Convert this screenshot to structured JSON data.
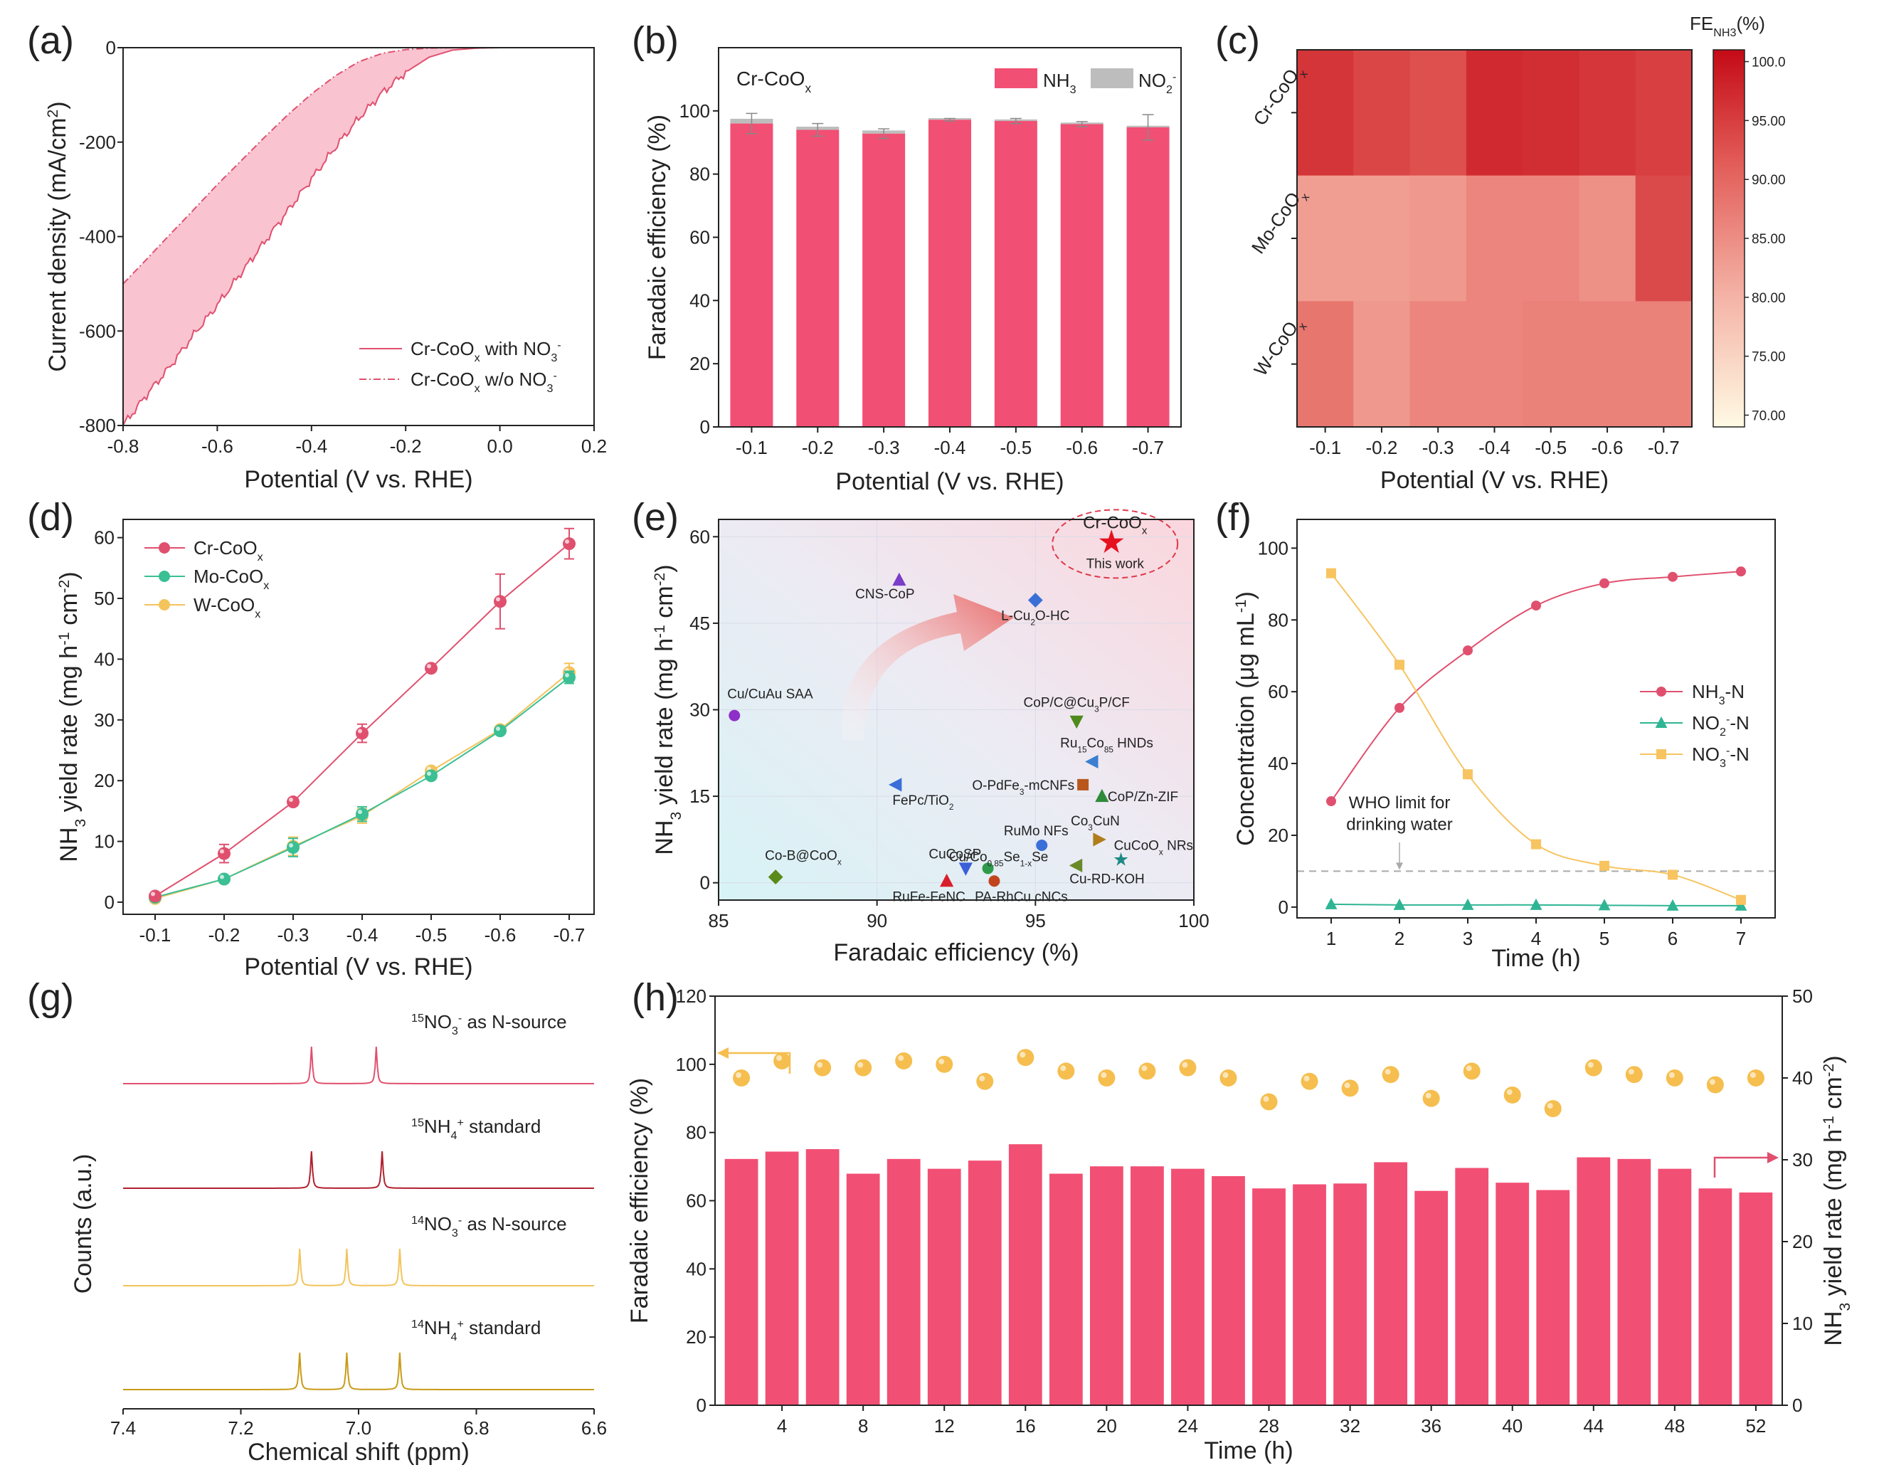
{
  "colors": {
    "cr": "#e0506e",
    "bar": "#f24f74",
    "mo": "#3bbf94",
    "w": "#f3c35c",
    "no2": "#2fb594",
    "no3": "#f7c460",
    "fill_a": "#f9c3d0",
    "no2bar": "#bdbdbd",
    "ball": "#f5be4e",
    "axis": "#222222"
  },
  "chart_data": [
    {
      "panel": "(a)",
      "type": "line",
      "xlabel": "Potential (V vs. RHE)",
      "ylabel": "Current density (mA/cm²)",
      "xlim": [
        -0.8,
        0.2
      ],
      "ylim": [
        -800,
        0
      ],
      "xticks": [
        "-0.8",
        "-0.6",
        "-0.4",
        "-0.2",
        "0.0",
        "0.2"
      ],
      "yticks": [
        "-800",
        "-600",
        "-400",
        "-200",
        "0"
      ],
      "series": [
        {
          "name": "Cr-CoOx with NO3-",
          "x": [
            -0.8,
            -0.75,
            -0.7,
            -0.65,
            -0.6,
            -0.55,
            -0.5,
            -0.45,
            -0.4,
            -0.35,
            -0.3,
            -0.25,
            -0.2,
            -0.15,
            -0.1,
            -0.05,
            0.0,
            0.05,
            0.1,
            0.15,
            0.2
          ],
          "y": [
            -800,
            -735,
            -675,
            -608,
            -545,
            -478,
            -412,
            -345,
            -278,
            -212,
            -150,
            -96,
            -52,
            -20,
            -5,
            -1,
            0,
            0,
            0,
            0,
            0
          ]
        },
        {
          "name": "Cr-CoOx w/o NO3-",
          "x": [
            -0.8,
            -0.75,
            -0.7,
            -0.65,
            -0.6,
            -0.55,
            -0.5,
            -0.45,
            -0.4,
            -0.35,
            -0.3,
            -0.25,
            -0.2,
            -0.15,
            -0.1,
            -0.05,
            0.0,
            0.05,
            0.1,
            0.15,
            0.2
          ],
          "y": [
            -500,
            -448,
            -395,
            -343,
            -290,
            -240,
            -190,
            -142,
            -98,
            -60,
            -30,
            -12,
            -4,
            -1,
            0,
            0,
            0,
            0,
            0,
            0,
            0
          ]
        }
      ]
    },
    {
      "panel": "(b)",
      "type": "bar",
      "label": "Cr-CoOx",
      "xlabel": "Potential (V vs. RHE)",
      "ylabel": "Faradaic efficiency (%)",
      "categories": [
        "-0.1",
        "-0.2",
        "-0.3",
        "-0.4",
        "-0.5",
        "-0.6",
        "-0.7"
      ],
      "ylim": [
        0,
        120
      ],
      "yticks": [
        "0",
        "20",
        "40",
        "60",
        "80",
        "100"
      ],
      "series": [
        {
          "name": "NH3",
          "values": [
            96.0,
            94.0,
            92.8,
            97.2,
            96.8,
            95.8,
            94.8
          ],
          "errors": [
            3.2,
            2.0,
            1.5,
            0.4,
            0.8,
            0.8,
            4.0
          ]
        },
        {
          "name": "NO2-",
          "values": [
            1.5,
            1.0,
            1.0,
            0.5,
            0.5,
            0.5,
            0.5
          ]
        }
      ]
    },
    {
      "panel": "(c)",
      "type": "heatmap",
      "xlabel": "Potential (V vs. RHE)",
      "x": [
        "-0.1",
        "-0.2",
        "-0.3",
        "-0.4",
        "-0.5",
        "-0.6",
        "-0.7"
      ],
      "y": [
        "Cr-CoOx",
        "Mo-CoOx",
        "W-CoOx"
      ],
      "values": [
        [
          96.0,
          94.0,
          92.8,
          97.2,
          96.8,
          95.8,
          94.8
        ],
        [
          83.0,
          83.0,
          83.5,
          86.0,
          86.0,
          84.5,
          93.5
        ],
        [
          88.0,
          83.5,
          86.0,
          86.0,
          86.5,
          86.5,
          86.5
        ]
      ],
      "colorbar": {
        "title": "FE",
        "sub": "NH3",
        "unit": "(%)",
        "min": 69,
        "max": 101,
        "ticks": [
          "100.0",
          "95.00",
          "90.00",
          "85.00",
          "80.00",
          "75.00",
          "70.00"
        ]
      }
    },
    {
      "panel": "(d)",
      "type": "line",
      "xlabel": "Potential (V vs. RHE)",
      "ylabel": "NH3 yield rate (mg h-1 cm-2)",
      "categories": [
        "-0.1",
        "-0.2",
        "-0.3",
        "-0.4",
        "-0.5",
        "-0.6",
        "-0.7"
      ],
      "ylim": [
        -2,
        63
      ],
      "yticks": [
        "0",
        "10",
        "20",
        "30",
        "40",
        "50",
        "60"
      ],
      "series": [
        {
          "name": "Cr-CoOx",
          "values": [
            1.0,
            8.0,
            16.5,
            27.8,
            38.5,
            49.5,
            59.0
          ],
          "errors": [
            0.3,
            1.5,
            0.4,
            1.5,
            0.4,
            4.5,
            2.5
          ]
        },
        {
          "name": "Mo-CoOx",
          "values": [
            0.8,
            3.8,
            9.0,
            14.5,
            20.8,
            28.2,
            37.0
          ],
          "errors": [
            0.3,
            0.4,
            1.5,
            1.2,
            0.5,
            0.4,
            1.0
          ]
        },
        {
          "name": "W-CoOx",
          "values": [
            0.6,
            3.8,
            9.2,
            14.2,
            21.6,
            28.4,
            37.8
          ],
          "errors": [
            0.3,
            0.4,
            1.5,
            1.2,
            0.5,
            0.4,
            1.5
          ]
        }
      ]
    },
    {
      "panel": "(e)",
      "type": "scatter",
      "xlabel": "Faradaic efficiency (%)",
      "ylabel": "NH3 yield rate (mg h-1 cm-2)",
      "xlim": [
        85,
        100
      ],
      "ylim": [
        -3,
        63
      ],
      "xticks": [
        "85",
        "90",
        "95",
        "100"
      ],
      "yticks": [
        "0",
        "15",
        "30",
        "45",
        "60"
      ],
      "highlight": {
        "name": "Cr-CoOx",
        "note": "This work",
        "x": 97.4,
        "y": 59.0
      },
      "points": [
        {
          "label": "CNS-CoP",
          "x": 90.7,
          "y": 52.5,
          "marker": "tri-up",
          "color": "#7a3cc9"
        },
        {
          "label": "L-Cu2O-HC",
          "x": 95.0,
          "y": 49.0,
          "marker": "diamond",
          "color": "#3a6fd8"
        },
        {
          "label": "Cu/CuAu SAA",
          "x": 85.5,
          "y": 29.0,
          "marker": "circle",
          "color": "#8e2fc8"
        },
        {
          "label": "CoP/C@Cu3P/CF",
          "x": 96.3,
          "y": 28.0,
          "marker": "tri-down",
          "color": "#4f8a1d"
        },
        {
          "label": "Ru15Co85 HNDs",
          "x": 96.8,
          "y": 21.0,
          "marker": "tri-left",
          "color": "#3a7fd0"
        },
        {
          "label": "FePc/TiO2",
          "x": 90.6,
          "y": 17.0,
          "marker": "tri-left",
          "color": "#3a6fd8"
        },
        {
          "label": "O-PdFe3-mCNFs",
          "x": 96.5,
          "y": 17.0,
          "marker": "square",
          "color": "#b8561c"
        },
        {
          "label": "CoP/Zn-ZIF",
          "x": 97.1,
          "y": 15.0,
          "marker": "tri-up",
          "color": "#2f8a3a"
        },
        {
          "label": "Co3CuN",
          "x": 97.0,
          "y": 7.5,
          "marker": "tri-right",
          "color": "#b07d1a"
        },
        {
          "label": "RuMo NFs",
          "x": 95.2,
          "y": 6.5,
          "marker": "circle",
          "color": "#3a6fd8"
        },
        {
          "label": "CuCoOx NRs",
          "x": 97.7,
          "y": 4.0,
          "marker": "star",
          "color": "#1f8a84"
        },
        {
          "label": "CuCoSP",
          "x": 92.8,
          "y": 2.5,
          "marker": "tri-down",
          "color": "#3a5fd8"
        },
        {
          "label": "Cu/Co0.85Se1-xSe",
          "x": 93.5,
          "y": 2.5,
          "marker": "circle",
          "color": "#2f9a4a"
        },
        {
          "label": "Cu-RD-KOH",
          "x": 96.3,
          "y": 3.0,
          "marker": "tri-left",
          "color": "#6a8a2a"
        },
        {
          "label": "Co-B@CoOx",
          "x": 86.8,
          "y": 1.0,
          "marker": "diamond",
          "color": "#5a8a1a"
        },
        {
          "label": "RuFe-FeNC",
          "x": 92.2,
          "y": 0.3,
          "marker": "tri-up",
          "color": "#d81e2a"
        },
        {
          "label": "PA-RhCu cNCs",
          "x": 93.7,
          "y": 0.3,
          "marker": "circle",
          "color": "#c0451f"
        }
      ]
    },
    {
      "panel": "(f)",
      "type": "line",
      "xlabel": "Time (h)",
      "ylabel": "Concentration (μg mL-1)",
      "x": [
        1,
        2,
        3,
        4,
        5,
        6,
        7
      ],
      "xlim": [
        0.5,
        7.5
      ],
      "ylim": [
        -3,
        108
      ],
      "yticks": [
        "0",
        "20",
        "40",
        "60",
        "80",
        "100"
      ],
      "series": [
        {
          "name": "NH3-N",
          "values": [
            29.5,
            55.5,
            71.5,
            84.0,
            90.2,
            92.0,
            93.5
          ]
        },
        {
          "name": "NO2--N",
          "values": [
            0.8,
            0.6,
            0.6,
            0.6,
            0.5,
            0.4,
            0.4
          ]
        },
        {
          "name": "NO3--N",
          "values": [
            93.0,
            67.5,
            37.0,
            17.5,
            11.5,
            9.0,
            2.0
          ]
        }
      ],
      "reference": {
        "name": "WHO limit for drinking water",
        "value": 10
      }
    },
    {
      "panel": "(g)",
      "type": "line",
      "xlabel": "Chemical shift (ppm)",
      "ylabel": "Counts (a.u.)",
      "xlim": [
        7.4,
        6.6
      ],
      "xticks": [
        "7.4",
        "7.2",
        "7.0",
        "6.8",
        "6.6"
      ],
      "series": [
        {
          "name": "15NO3- as N-source",
          "peaks": [
            7.08,
            6.97
          ]
        },
        {
          "name": "15NH4+ standard",
          "peaks": [
            7.08,
            6.96
          ]
        },
        {
          "name": "14NO3- as N-source",
          "peaks": [
            7.1,
            7.02,
            6.93
          ]
        },
        {
          "name": "14NH4+ standard",
          "peaks": [
            7.1,
            7.02,
            6.93
          ]
        }
      ]
    },
    {
      "panel": "(h)",
      "type": "bar",
      "xlabel": "Time (h)",
      "ylabel": "Faradaic efficiency (%)",
      "y2label": "NH3 yield rate (mg h-1 cm-2)",
      "x": [
        2,
        4,
        6,
        8,
        10,
        12,
        14,
        16,
        18,
        20,
        22,
        24,
        26,
        28,
        30,
        32,
        34,
        36,
        38,
        40,
        42,
        44,
        46,
        48,
        50,
        52
      ],
      "xticks": [
        "4",
        "8",
        "12",
        "16",
        "20",
        "24",
        "28",
        "32",
        "36",
        "40",
        "44",
        "48",
        "52"
      ],
      "ylim": [
        0,
        120
      ],
      "y2lim": [
        0,
        50
      ],
      "yticks": [
        "0",
        "20",
        "40",
        "60",
        "80",
        "100",
        "120"
      ],
      "y2ticks": [
        "0",
        "10",
        "20",
        "30",
        "40",
        "50"
      ],
      "series": [
        {
          "name": "Faradaic efficiency",
          "axis": "left",
          "values": [
            96,
            101,
            99,
            99,
            101,
            100,
            95,
            102,
            98,
            96,
            98,
            99,
            96,
            89,
            95,
            93,
            97,
            90,
            98,
            91,
            87,
            99,
            97,
            96,
            94,
            96
          ]
        },
        {
          "name": "NH3 yield rate",
          "axis": "right",
          "values": [
            30.1,
            31.0,
            31.3,
            28.3,
            30.1,
            28.9,
            29.9,
            31.9,
            28.3,
            29.2,
            29.2,
            28.9,
            28.0,
            26.5,
            27.0,
            27.1,
            29.7,
            26.2,
            29.0,
            27.2,
            26.3,
            30.3,
            30.1,
            28.9,
            26.5,
            26.0
          ]
        }
      ]
    }
  ]
}
